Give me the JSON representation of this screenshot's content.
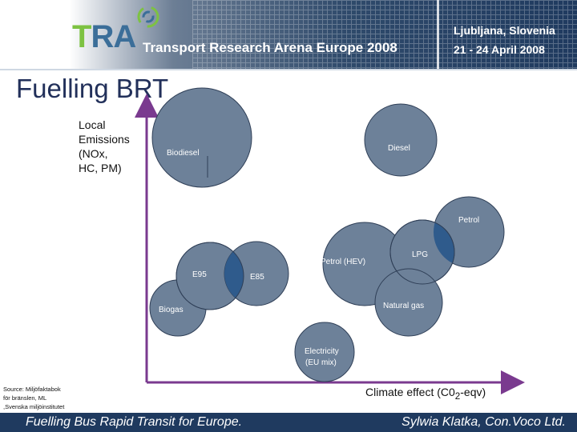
{
  "header": {
    "logo_text_t": "T",
    "logo_text_ra": "RA",
    "event_title": "Transport Research Arena Europe 2008",
    "location": "Ljubljana, Slovenia",
    "dates": "21 - 24 April 2008"
  },
  "slide": {
    "title": "Fuelling BRT"
  },
  "axes": {
    "y_label": "Local\nEmissions\n(NOx,\nHC, PM)",
    "x_label_prefix": "Climate effect (C0",
    "x_label_sub": "2",
    "x_label_suffix": "-eqv)"
  },
  "source_note": "Source: Miljöfaktabok\nför bränslen, ML\n,Svenska miljöinstitutet",
  "bubbles": [
    {
      "name": "Biodiesel",
      "label": "Biodiesel"
    },
    {
      "name": "Diesel",
      "label": "Diesel"
    },
    {
      "name": "Petrol",
      "label": "Petrol"
    },
    {
      "name": "LPG",
      "label": "LPG"
    },
    {
      "name": "Petrol (HEV)",
      "label": "Petrol (HEV)"
    },
    {
      "name": "E95",
      "label": "E95"
    },
    {
      "name": "E85",
      "label": "E85"
    },
    {
      "name": "Natural gas",
      "label": "Natural gas"
    },
    {
      "name": "Biogas",
      "label": "Biogas"
    },
    {
      "name": "Electricity",
      "label": "Electricity",
      "sub_label": "(EU mix)"
    }
  ],
  "colors": {
    "bubble_fill": "#6d8199",
    "bubble_stroke": "#2f3f57",
    "overlap_fill": "#2f5b8c",
    "axis": "#7a3a8f",
    "footer_bg": "#1f3a5f"
  },
  "footer": {
    "left": "Fuelling Bus Rapid Transit for Europe.",
    "right": "Sylwia Klatka, Con.Voco Ltd."
  }
}
